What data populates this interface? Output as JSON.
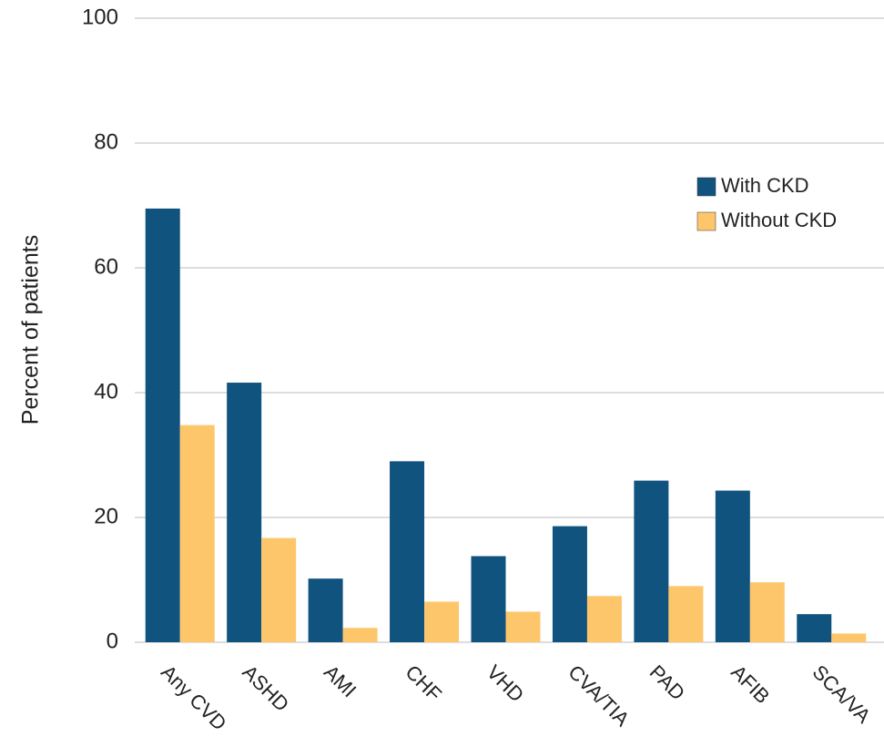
{
  "chart_data": {
    "type": "bar",
    "y_label": "Percent of patients",
    "categories": [
      "Any CVD",
      "ASHD",
      "AMI",
      "CHF",
      "VHD",
      "CVA/TIA",
      "PAD",
      "AFIB",
      "SCA/VA"
    ],
    "series": [
      {
        "name": "With CKD",
        "color": "#11537f",
        "values": [
          69.5,
          41.6,
          10.2,
          29.0,
          13.8,
          18.6,
          25.9,
          24.3,
          4.5
        ]
      },
      {
        "name": "Without CKD",
        "color": "#fec66a",
        "values": [
          34.8,
          16.7,
          2.3,
          6.5,
          4.9,
          7.4,
          9.0,
          9.6,
          1.4
        ]
      }
    ],
    "ylim": [
      0,
      100
    ],
    "yticks": [
      0,
      20,
      40,
      60,
      80,
      100
    ],
    "grid": true,
    "legend": "upper right"
  }
}
